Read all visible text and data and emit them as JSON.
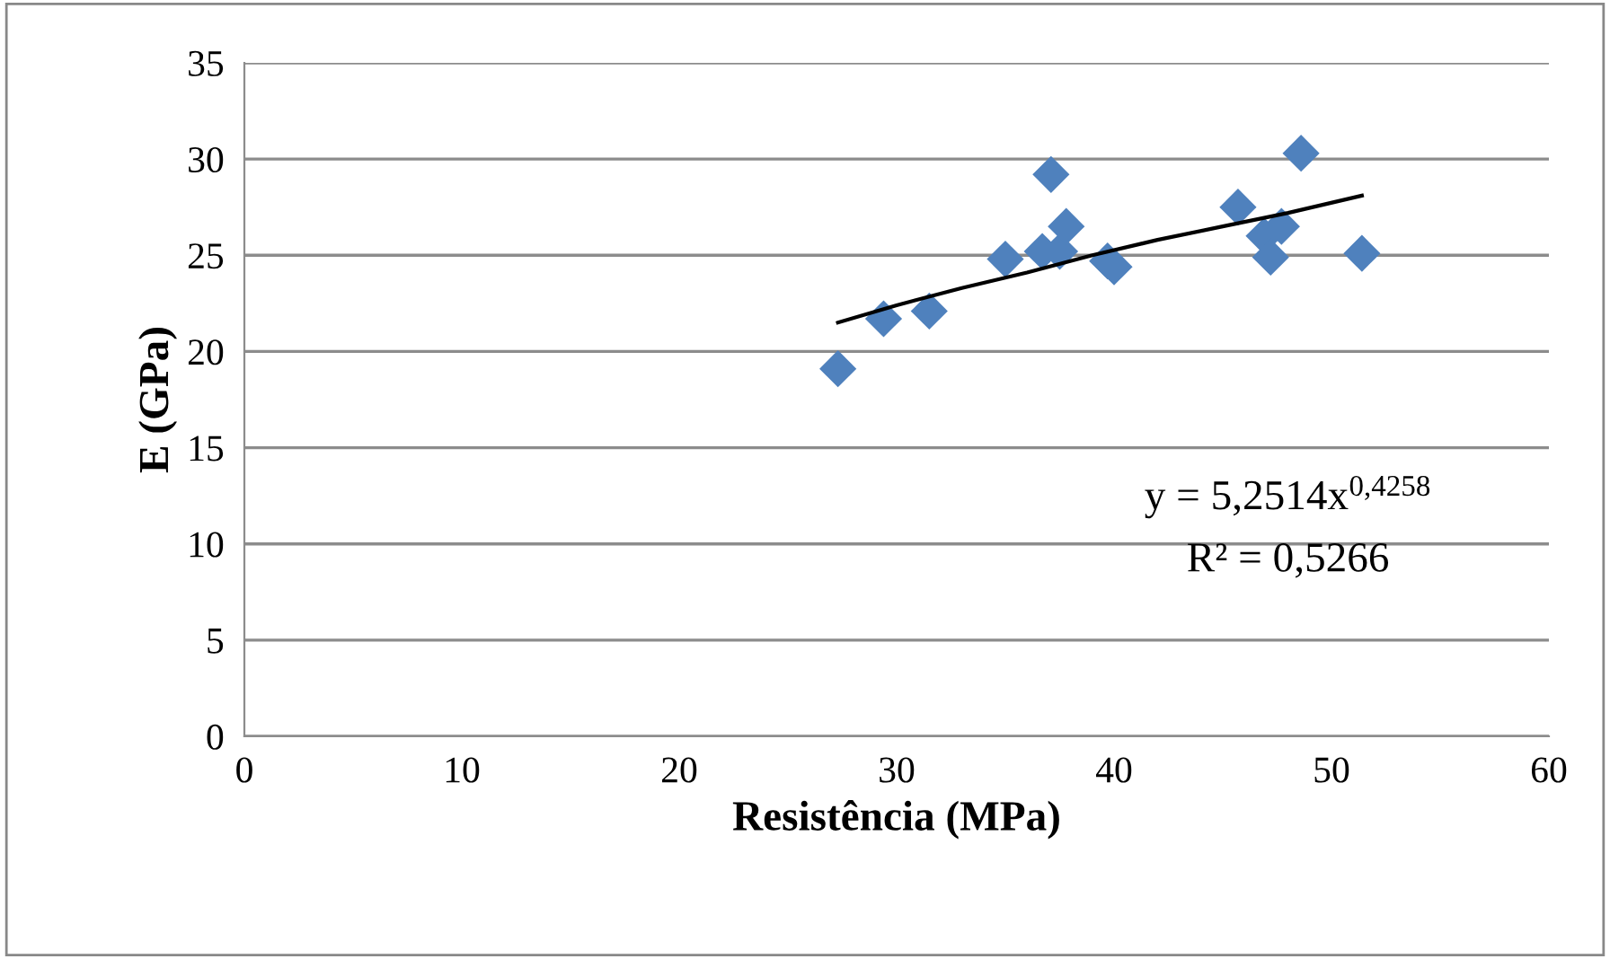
{
  "chart_data": {
    "type": "scatter",
    "xlabel": "Resistência (MPa)",
    "ylabel": "E (GPa)",
    "xlim": [
      0,
      60
    ],
    "xticks": [
      0,
      10,
      20,
      30,
      40,
      50,
      60
    ],
    "ylim": [
      0,
      35
    ],
    "yticks": [
      0,
      5,
      10,
      15,
      20,
      25,
      30,
      35
    ],
    "grid": "y",
    "legend": false,
    "marker": "diamond",
    "annotations": [
      "y = 5,2514x$^{0,4258}$",
      "R² = 0,5266"
    ],
    "series": [
      {
        "color": "#4f81bd",
        "x": [
          27.3,
          29.4,
          31.5,
          35.0,
          36.7,
          37.5,
          37.1,
          37.8,
          39.7,
          40.0,
          45.7,
          46.9,
          47.7,
          47.2,
          48.6,
          51.4
        ],
        "values": [
          19.1,
          21.7,
          22.1,
          24.8,
          25.2,
          25.2,
          29.2,
          26.5,
          24.7,
          24.4,
          27.5,
          26.0,
          26.5,
          24.9,
          30.3,
          25.1
        ]
      },
      {
        "type": "line",
        "color": "#000000",
        "line_style": "solid",
        "marker": "none",
        "x": [
          27.3,
          30,
          33,
          36,
          39,
          42,
          45,
          48,
          51.4
        ],
        "values": [
          21.5,
          22.4,
          23.3,
          24.1,
          25.0,
          25.8,
          26.5,
          27.2,
          28.1
        ]
      }
    ]
  }
}
